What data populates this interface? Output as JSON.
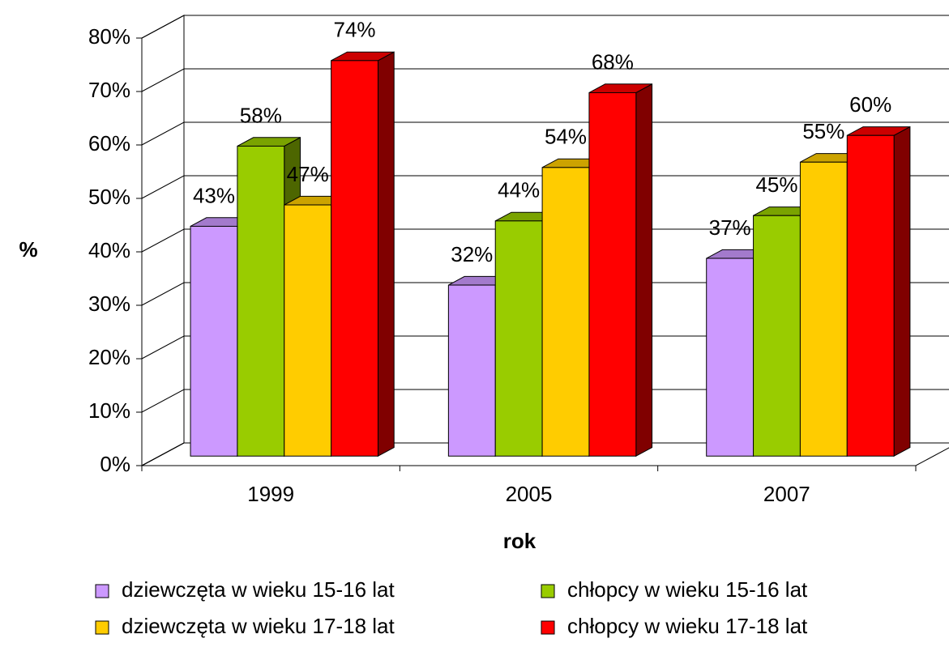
{
  "chart_data": {
    "type": "bar3d",
    "xlabel": "rok",
    "ylabel": "%",
    "categories": [
      "1999",
      "2005",
      "2007"
    ],
    "series": [
      {
        "name": "dziewczęta w wieku 15-16 lat",
        "color": "#cc99ff",
        "values": [
          43,
          32,
          37
        ],
        "value_labels": [
          "43%",
          "32%",
          "37%"
        ]
      },
      {
        "name": "chłopcy w wieku 15-16 lat",
        "color": "#99cc00",
        "values": [
          58,
          44,
          45
        ],
        "value_labels": [
          "58%",
          "44%",
          "45%"
        ]
      },
      {
        "name": "dziewczęta w wieku 17-18 lat",
        "color": "#ffcc00",
        "values": [
          47,
          54,
          55
        ],
        "value_labels": [
          "47%",
          "54%",
          "55%"
        ]
      },
      {
        "name": "chłopcy w wieku 17-18 lat",
        "color": "#ff0000",
        "values": [
          74,
          68,
          60
        ],
        "value_labels": [
          "74%",
          "68%",
          "60%"
        ]
      }
    ],
    "ylim": [
      0,
      80
    ],
    "yticks": [
      {
        "value": 0,
        "label": "0%"
      },
      {
        "value": 10,
        "label": "10%"
      },
      {
        "value": 20,
        "label": "20%"
      },
      {
        "value": 30,
        "label": "30%"
      },
      {
        "value": 40,
        "label": "40%"
      },
      {
        "value": 50,
        "label": "50%"
      },
      {
        "value": 60,
        "label": "60%"
      },
      {
        "value": 70,
        "label": "70%"
      },
      {
        "value": 80,
        "label": "80%"
      }
    ],
    "grid": true
  }
}
